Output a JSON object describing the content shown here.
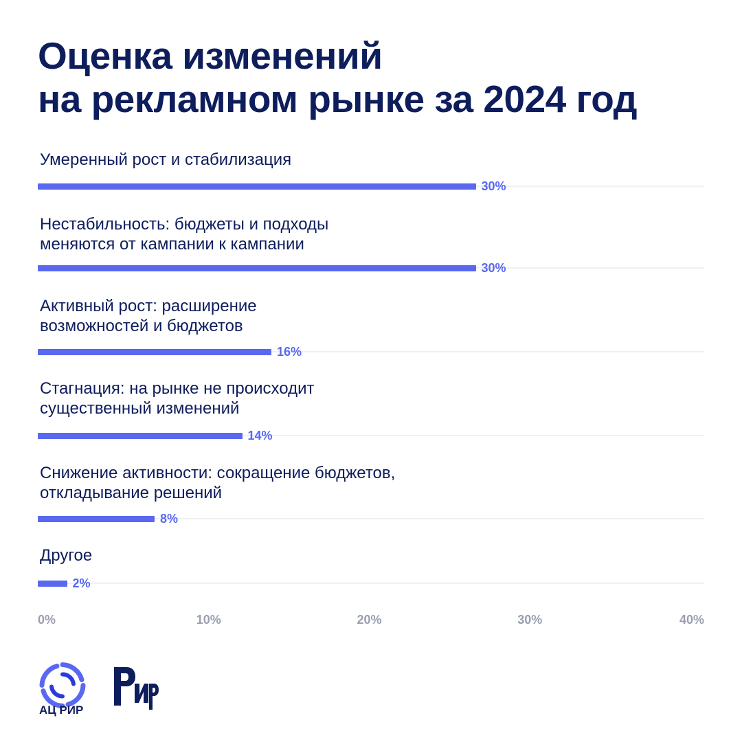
{
  "title": {
    "line1": "Оценка изменений",
    "line2": "на рекламном рынке за 2024 год"
  },
  "chart_data": {
    "type": "bar",
    "orientation": "horizontal",
    "title": "Оценка изменений на рекламном рынке за 2024 год",
    "categories": [
      [
        "Умеренный рост и стабилизация"
      ],
      [
        "Нестабильность: бюджеты и подходы",
        "меняются от кампании к кампании"
      ],
      [
        "Активный рост: расширение",
        "возможностей и бюджетов"
      ],
      [
        "Стагнация: на рынке не происходит",
        "существенный изменений"
      ],
      [
        "Снижение активности: сокращение бюджетов,",
        "откладывание решений"
      ],
      [
        "Другое"
      ]
    ],
    "values": [
      30,
      30,
      16,
      14,
      8,
      2
    ],
    "value_labels": [
      "30%",
      "30%",
      "16%",
      "14%",
      "8%",
      "2%"
    ],
    "xlim": [
      0,
      40
    ],
    "ticks": [
      "0%",
      "10%",
      "20%",
      "30%",
      "40%"
    ],
    "unit": "%",
    "bar_color": "#5a68f0",
    "legend": "none",
    "grid": false
  },
  "colors": {
    "title": "#0e1d5c",
    "bar": "#5a68f0",
    "axis_ticks": "#9a9fb0",
    "track": "#eef0f6"
  },
  "logos": {
    "acrir_caption": "АЦ РИР",
    "acrir_icon": "acrir-swirl-logo",
    "rir_icon": "rir-wordmark-logo"
  }
}
